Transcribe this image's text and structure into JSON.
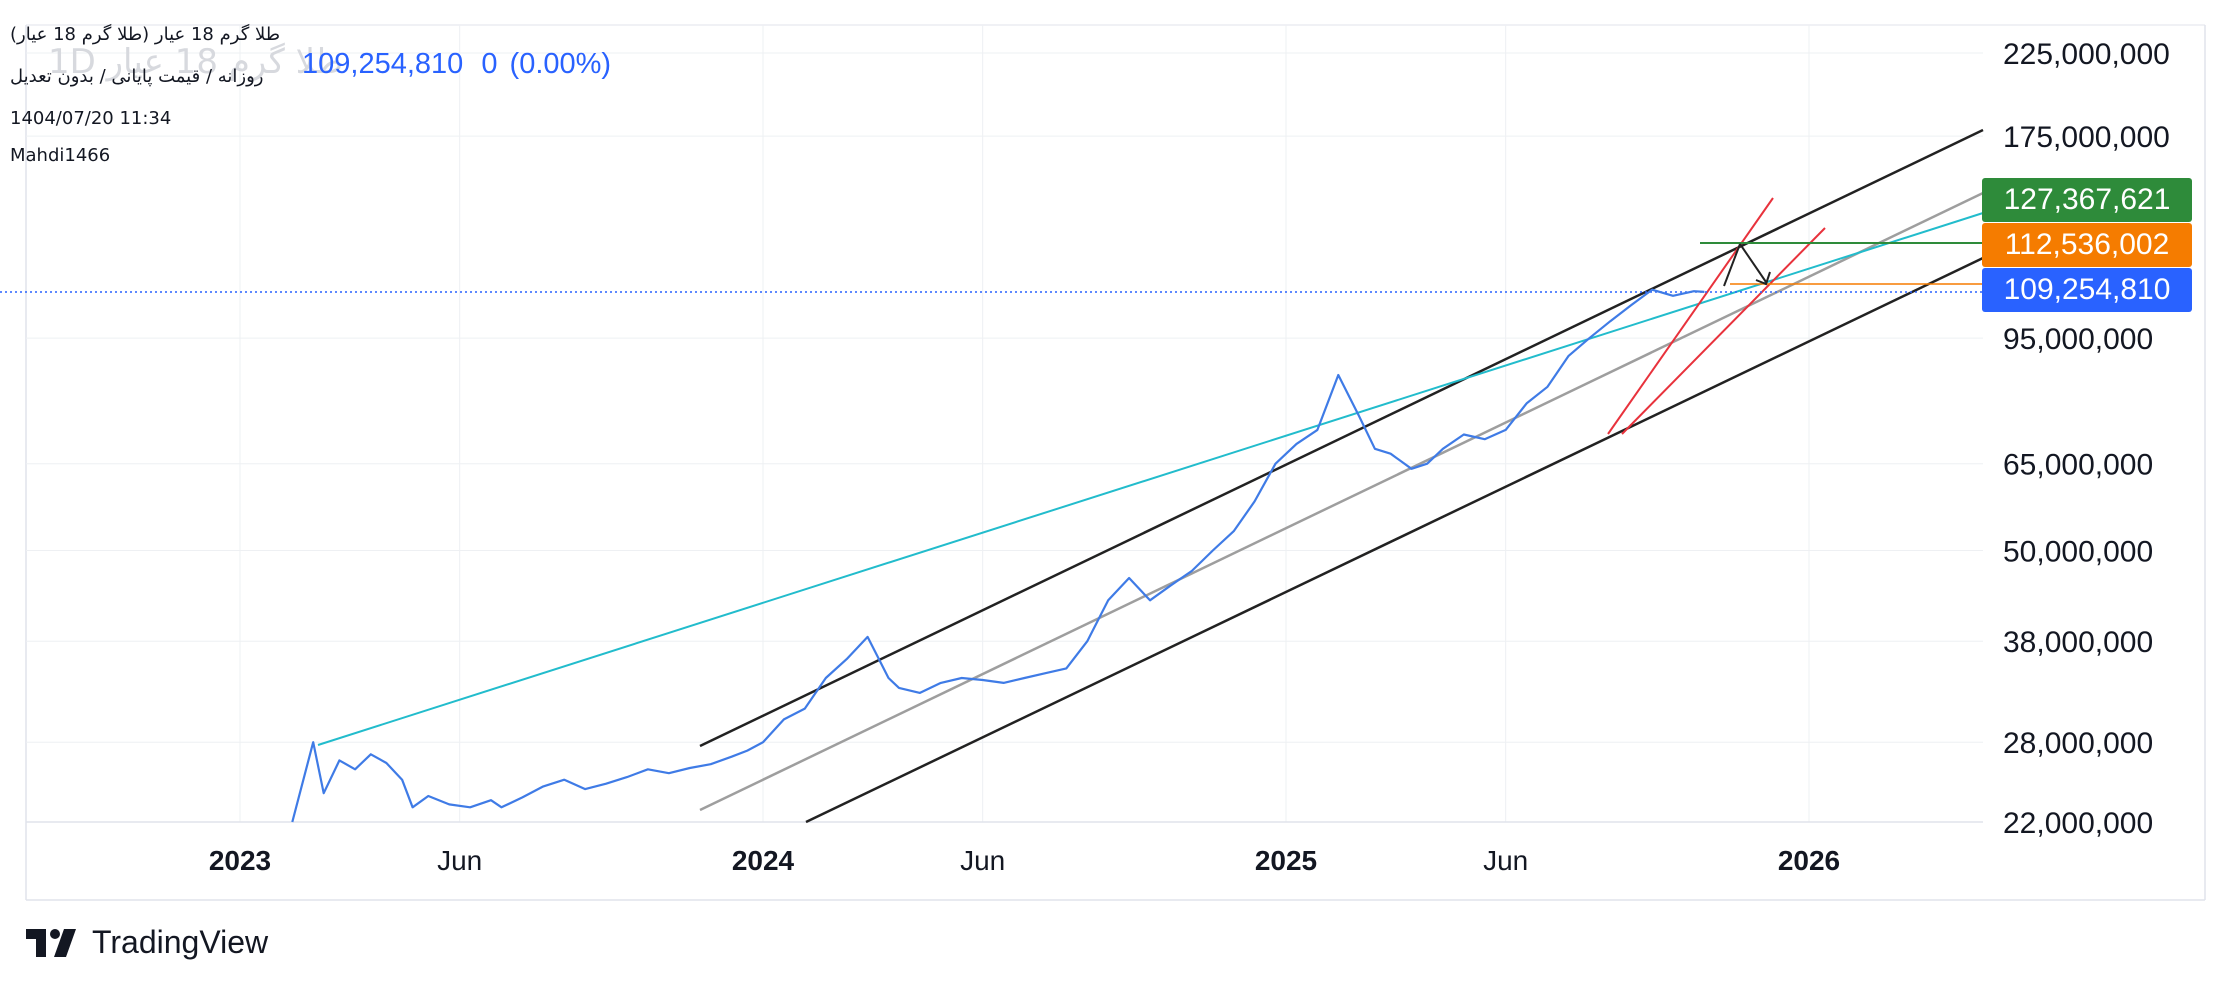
{
  "header": {
    "title": "طلا گرم 18 عیار (طلا گرم 18 عیار)",
    "watermark_symbol": "طلا گرم 18 عیار 1D",
    "interval_info": "روزانه / قیمت پایانی / بدون تعدیل",
    "datetime": "1404/07/20 11:34",
    "author": "Mahdi1466",
    "last_price": "109,254,810",
    "change": "0",
    "change_pct": "(0.00%)"
  },
  "price_tags": {
    "green": {
      "label": "127,367,621",
      "color": "#2e8b3a"
    },
    "orange": {
      "label": "112,536,002",
      "color": "#f57c00"
    },
    "blue": {
      "label": "109,254,810",
      "color": "#2962ff"
    }
  },
  "branding": {
    "name": "TradingView"
  },
  "colors": {
    "price_line": "#3f7be6",
    "channel": "#222222",
    "midline": "#9e9e9e",
    "trend": "#22bccc",
    "red": "#e8323c",
    "grid": "#eef0f3"
  },
  "chart_data": {
    "type": "line",
    "scale": "log",
    "ylim": [
      21000000,
      240000000
    ],
    "y_ticks": [
      {
        "label": "225,000,000",
        "value": 225000000
      },
      {
        "label": "175,000,000",
        "value": 175000000
      },
      {
        "label": "95,000,000",
        "value": 95000000
      },
      {
        "label": "65,000,000",
        "value": 65000000
      },
      {
        "label": "50,000,000",
        "value": 50000000
      },
      {
        "label": "38,000,000",
        "value": 38000000
      },
      {
        "label": "28,000,000",
        "value": 28000000
      },
      {
        "label": "22,000,000",
        "value": 22000000
      }
    ],
    "x_ticks": [
      {
        "label": "2023",
        "t": 2023.0,
        "bold": true
      },
      {
        "label": "Jun",
        "t": 2023.42,
        "bold": false
      },
      {
        "label": "2024",
        "t": 2024.0,
        "bold": true
      },
      {
        "label": "Jun",
        "t": 2024.42,
        "bold": false
      },
      {
        "label": "2025",
        "t": 2025.0,
        "bold": true
      },
      {
        "label": "Jun",
        "t": 2025.42,
        "bold": false
      },
      {
        "label": "2026",
        "t": 2026.0,
        "bold": true
      }
    ],
    "series": [
      {
        "x": [
          2023.1,
          2023.14,
          2023.16,
          2023.19,
          2023.22,
          2023.25,
          2023.28,
          2023.31,
          2023.33,
          2023.36,
          2023.4,
          2023.44,
          2023.48,
          2023.5,
          2023.54,
          2023.58,
          2023.62,
          2023.66,
          2023.7,
          2023.74,
          2023.78,
          2023.82,
          2023.86,
          2023.9,
          2023.94,
          2023.97,
          2024.0,
          2024.04,
          2024.08,
          2024.12,
          2024.16,
          2024.2,
          2024.24,
          2024.26,
          2024.3,
          2024.34,
          2024.38,
          2024.42,
          2024.46,
          2024.5,
          2024.54,
          2024.58,
          2024.62,
          2024.66,
          2024.7,
          2024.74,
          2024.78,
          2024.82,
          2024.86,
          2024.9,
          2024.94,
          2024.98,
          2025.02,
          2025.06,
          2025.1,
          2025.14,
          2025.17,
          2025.2,
          2025.24,
          2025.27,
          2025.3,
          2025.34,
          2025.38,
          2025.42,
          2025.46,
          2025.5,
          2025.54,
          2025.58,
          2025.62,
          2025.66,
          2025.7,
          2025.74,
          2025.78,
          2025.8
        ],
        "y": [
          21500000,
          28000000,
          24000000,
          26500000,
          25800000,
          27000000,
          26300000,
          25000000,
          23000000,
          23800000,
          23200000,
          23000000,
          23500000,
          23000000,
          23700000,
          24500000,
          25000000,
          24300000,
          24700000,
          25200000,
          25800000,
          25500000,
          25900000,
          26200000,
          26800000,
          27300000,
          28000000,
          30000000,
          31000000,
          34000000,
          36000000,
          38500000,
          34000000,
          33000000,
          32500000,
          33500000,
          34000000,
          33800000,
          33500000,
          34000000,
          34500000,
          35000000,
          38000000,
          43000000,
          46000000,
          43000000,
          45000000,
          47000000,
          50000000,
          53000000,
          58000000,
          65000000,
          69000000,
          72000000,
          85000000,
          75000000,
          68000000,
          67000000,
          64000000,
          65000000,
          68000000,
          71000000,
          70000000,
          72000000,
          78000000,
          82000000,
          90000000,
          95000000,
          100000000,
          105000000,
          110000000,
          108000000,
          109500000,
          109254810
        ]
      }
    ]
  }
}
